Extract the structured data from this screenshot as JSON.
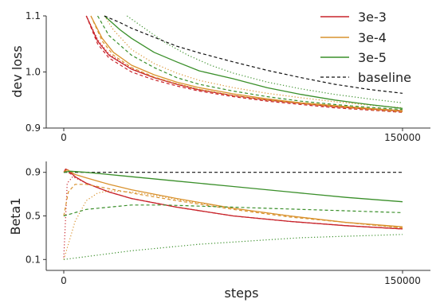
{
  "chart_data": [
    {
      "type": "line",
      "ylabel": "dev loss",
      "xlabel": "",
      "xlim": [
        0,
        160000
      ],
      "ylim": [
        0.9,
        1.1
      ],
      "xticks": [
        0,
        150000
      ],
      "xtick_labels": [
        "0",
        "150000"
      ],
      "yticks": [
        0.9,
        1.0,
        1.1
      ],
      "ytick_labels": [
        "0.9",
        "1.0",
        "1.1"
      ],
      "legend": {
        "placement": "top-right",
        "entries": [
          {
            "label": "3e-3",
            "color": "#c8242b",
            "style": "solid"
          },
          {
            "label": "3e-4",
            "color": "#d9922e",
            "style": "solid"
          },
          {
            "label": "3e-5",
            "color": "#3a8f2a",
            "style": "solid"
          },
          {
            "label": "baseline",
            "color": "#111111",
            "style": "dashed"
          }
        ]
      },
      "series": [
        {
          "color": "#c8242b",
          "style": "solid",
          "x": [
            10000,
            15000,
            20000,
            30000,
            40000,
            50000,
            60000,
            75000,
            90000,
            105000,
            120000,
            135000,
            150000
          ],
          "y": [
            1.1,
            1.055,
            1.03,
            1.005,
            0.99,
            0.978,
            0.968,
            0.958,
            0.95,
            0.944,
            0.938,
            0.934,
            0.93
          ]
        },
        {
          "color": "#c8242b",
          "style": "dashed",
          "x": [
            10000,
            15000,
            20000,
            30000,
            40000,
            50000,
            60000,
            75000,
            90000,
            105000,
            120000,
            135000,
            150000
          ],
          "y": [
            1.1,
            1.05,
            1.025,
            1.0,
            0.986,
            0.975,
            0.966,
            0.956,
            0.948,
            0.942,
            0.936,
            0.932,
            0.928
          ]
        },
        {
          "color": "#c8242b",
          "style": "dotted",
          "x": [
            10000,
            15000,
            20000,
            30000,
            40000,
            50000,
            60000,
            75000,
            90000,
            105000,
            120000,
            135000,
            150000
          ],
          "y": [
            1.1,
            1.058,
            1.032,
            1.006,
            0.99,
            0.979,
            0.969,
            0.958,
            0.95,
            0.944,
            0.938,
            0.934,
            0.93
          ]
        },
        {
          "color": "#d9922e",
          "style": "solid",
          "x": [
            12000,
            17000,
            22000,
            30000,
            40000,
            50000,
            60000,
            75000,
            90000,
            105000,
            120000,
            135000,
            150000
          ],
          "y": [
            1.1,
            1.06,
            1.035,
            1.012,
            0.995,
            0.982,
            0.972,
            0.961,
            0.952,
            0.945,
            0.94,
            0.935,
            0.931
          ]
        },
        {
          "color": "#d9922e",
          "style": "dashed",
          "x": [
            12000,
            17000,
            22000,
            30000,
            40000,
            50000,
            60000,
            75000,
            90000,
            105000,
            120000,
            135000,
            150000
          ],
          "y": [
            1.1,
            1.055,
            1.03,
            1.008,
            0.991,
            0.979,
            0.969,
            0.958,
            0.95,
            0.944,
            0.938,
            0.933,
            0.929
          ]
        },
        {
          "color": "#d9922e",
          "style": "dotted",
          "x": [
            18000,
            22000,
            30000,
            40000,
            50000,
            60000,
            75000,
            90000,
            105000,
            120000,
            135000,
            150000
          ],
          "y": [
            1.1,
            1.075,
            1.04,
            1.015,
            0.998,
            0.985,
            0.972,
            0.962,
            0.954,
            0.947,
            0.941,
            0.936
          ]
        },
        {
          "color": "#3a8f2a",
          "style": "solid",
          "x": [
            18000,
            25000,
            30000,
            40000,
            50000,
            60000,
            75000,
            90000,
            105000,
            120000,
            135000,
            150000
          ],
          "y": [
            1.1,
            1.075,
            1.06,
            1.035,
            1.018,
            1.002,
            0.988,
            0.972,
            0.96,
            0.95,
            0.942,
            0.935
          ]
        },
        {
          "color": "#3a8f2a",
          "style": "dashed",
          "x": [
            15000,
            20000,
            30000,
            40000,
            50000,
            60000,
            75000,
            90000,
            105000,
            120000,
            135000,
            150000
          ],
          "y": [
            1.1,
            1.065,
            1.03,
            1.008,
            0.99,
            0.978,
            0.966,
            0.956,
            0.948,
            0.942,
            0.937,
            0.933
          ]
        },
        {
          "color": "#3a8f2a",
          "style": "dotted",
          "x": [
            28000,
            35000,
            45000,
            55000,
            65000,
            75000,
            90000,
            105000,
            120000,
            135000,
            150000
          ],
          "y": [
            1.1,
            1.08,
            1.052,
            1.03,
            1.012,
            0.998,
            0.982,
            0.97,
            0.96,
            0.952,
            0.945
          ]
        },
        {
          "color": "#111111",
          "style": "dashed",
          "x": [
            18000,
            25000,
            30000,
            40000,
            50000,
            60000,
            75000,
            90000,
            105000,
            120000,
            135000,
            150000
          ],
          "y": [
            1.1,
            1.088,
            1.078,
            1.062,
            1.046,
            1.034,
            1.018,
            1.003,
            0.99,
            0.978,
            0.969,
            0.962
          ]
        }
      ]
    },
    {
      "type": "line",
      "ylabel": "Beta1",
      "xlabel": "steps",
      "xlim": [
        -5000,
        160000
      ],
      "ylim": [
        0.0,
        1.0
      ],
      "xticks": [
        0,
        150000
      ],
      "xtick_labels": [
        "0",
        "150000"
      ],
      "yticks": [
        0.1,
        0.5,
        0.9
      ],
      "ytick_labels": [
        "0.1",
        "0.5",
        "0.9"
      ],
      "series": [
        {
          "color": "#111111",
          "style": "dashed",
          "x": [
            0,
            150000
          ],
          "y": [
            0.9,
            0.9
          ]
        },
        {
          "color": "#c8242b",
          "style": "solid",
          "x": [
            0,
            800,
            2000,
            5000,
            10000,
            20000,
            30000,
            50000,
            75000,
            100000,
            125000,
            150000
          ],
          "y": [
            0.9,
            0.93,
            0.92,
            0.86,
            0.8,
            0.72,
            0.66,
            0.58,
            0.5,
            0.45,
            0.41,
            0.38
          ]
        },
        {
          "color": "#c8242b",
          "style": "dashed",
          "x": [
            0,
            800,
            2000,
            5000,
            10000,
            20000,
            30000,
            50000,
            75000,
            100000,
            125000,
            150000
          ],
          "y": [
            0.9,
            0.91,
            0.9,
            0.86,
            0.8,
            0.72,
            0.66,
            0.58,
            0.5,
            0.45,
            0.41,
            0.38
          ]
        },
        {
          "color": "#c8242b",
          "style": "dotted",
          "x": [
            0,
            1500,
            4000,
            10000,
            20000,
            30000,
            50000,
            75000,
            100000,
            125000,
            150000
          ],
          "y": [
            0.12,
            0.8,
            0.86,
            0.8,
            0.72,
            0.66,
            0.58,
            0.5,
            0.45,
            0.41,
            0.38
          ]
        },
        {
          "color": "#d9922e",
          "style": "solid",
          "x": [
            0,
            1000,
            2000,
            5000,
            10000,
            20000,
            30000,
            50000,
            75000,
            100000,
            125000,
            150000
          ],
          "y": [
            0.9,
            0.92,
            0.92,
            0.88,
            0.85,
            0.79,
            0.74,
            0.66,
            0.57,
            0.5,
            0.44,
            0.4
          ]
        },
        {
          "color": "#d9922e",
          "style": "dashed",
          "x": [
            0,
            2000,
            5000,
            10000,
            15000,
            20000,
            30000,
            50000,
            75000,
            100000,
            125000,
            150000
          ],
          "y": [
            0.5,
            0.72,
            0.79,
            0.79,
            0.77,
            0.75,
            0.71,
            0.64,
            0.56,
            0.49,
            0.44,
            0.39
          ]
        },
        {
          "color": "#d9922e",
          "style": "dotted",
          "x": [
            0,
            5000,
            10000,
            15000,
            20000,
            30000,
            40000,
            50000,
            75000,
            100000,
            125000,
            150000
          ],
          "y": [
            0.1,
            0.45,
            0.64,
            0.71,
            0.73,
            0.72,
            0.69,
            0.65,
            0.57,
            0.5,
            0.44,
            0.39
          ]
        },
        {
          "color": "#3a8f2a",
          "style": "solid",
          "x": [
            0,
            3000,
            10000,
            25000,
            50000,
            75000,
            100000,
            125000,
            150000
          ],
          "y": [
            0.9,
            0.91,
            0.9,
            0.87,
            0.82,
            0.77,
            0.72,
            0.67,
            0.63
          ]
        },
        {
          "color": "#3a8f2a",
          "style": "dashed",
          "x": [
            0,
            10000,
            20000,
            30000,
            45000,
            60000,
            75000,
            90000,
            105000,
            120000,
            135000,
            150000
          ],
          "y": [
            0.5,
            0.56,
            0.58,
            0.6,
            0.6,
            0.59,
            0.58,
            0.57,
            0.56,
            0.55,
            0.54,
            0.53
          ]
        },
        {
          "color": "#3a8f2a",
          "style": "dotted",
          "x": [
            0,
            15000,
            30000,
            45000,
            60000,
            75000,
            90000,
            105000,
            120000,
            135000,
            150000
          ],
          "y": [
            0.1,
            0.14,
            0.18,
            0.21,
            0.24,
            0.26,
            0.28,
            0.3,
            0.31,
            0.32,
            0.33
          ]
        }
      ]
    }
  ]
}
